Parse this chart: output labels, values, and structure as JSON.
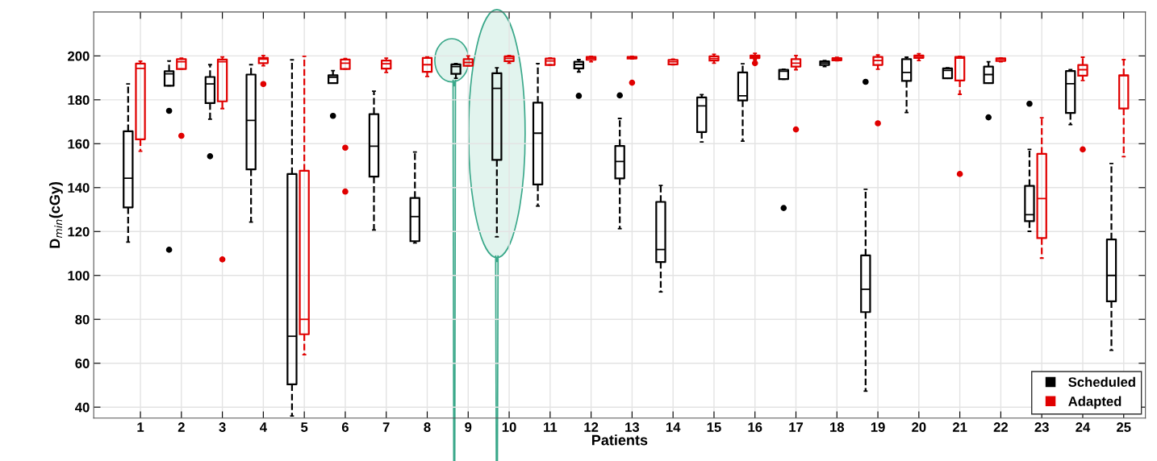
{
  "chart_data": {
    "type": "box",
    "xlabel": "Patients",
    "ylabel": "D$_{min}$(cGy)",
    "categories": [
      "1",
      "2",
      "3",
      "4",
      "5",
      "6",
      "7",
      "8",
      "9",
      "10",
      "11",
      "12",
      "13",
      "14",
      "15",
      "16",
      "17",
      "18",
      "19",
      "20",
      "21",
      "22",
      "23",
      "24",
      "25"
    ],
    "ylim": [
      35,
      220
    ],
    "yticks": [
      40,
      60,
      80,
      100,
      120,
      140,
      160,
      180,
      200
    ],
    "grid": true,
    "legend": "bottom right",
    "series": [
      {
        "name": "Scheduled",
        "color": "#000000",
        "boxes": [
          {
            "low": 115.2,
            "q1": 131,
            "median": 144.3,
            "q3": 165.7,
            "high": 187.2
          },
          {
            "low": 186.4,
            "q1": 186.4,
            "median": 191.8,
            "q3": 193,
            "high": 197.7,
            "outliers": [
              175,
              111.7
            ]
          },
          {
            "low": 171.2,
            "q1": 178.5,
            "median": 187.2,
            "q3": 190.4,
            "high": 196,
            "outliers": [
              154.3
            ]
          },
          {
            "low": 124.3,
            "q1": 148.3,
            "median": 170.6,
            "q3": 191.5,
            "high": 196
          },
          {
            "low": 36,
            "q1": 50.4,
            "median": 72.3,
            "q3": 146.2,
            "high": 198.2
          },
          {
            "low": 187.6,
            "q1": 187.6,
            "median": 190.3,
            "q3": 191.2,
            "high": 193.3,
            "outliers": [
              172.7
            ]
          },
          {
            "low": 120.7,
            "q1": 145,
            "median": 158.9,
            "q3": 173.5,
            "high": 183.9
          },
          {
            "low": 114.8,
            "q1": 115.6,
            "median": 126.8,
            "q3": 135.3,
            "high": 156.2
          },
          {
            "low": 189.8,
            "q1": 191.8,
            "median": 195.1,
            "q3": 196.1,
            "high": 196.5
          },
          {
            "low": 117.6,
            "q1": 152.6,
            "median": 185.2,
            "q3": 192.1,
            "high": 194.6
          },
          {
            "low": 131.6,
            "q1": 141.4,
            "median": 164.8,
            "q3": 178.7,
            "high": 196.5
          },
          {
            "low": 192.7,
            "q1": 194.3,
            "median": 196.1,
            "q3": 197.3,
            "high": 198.3,
            "outliers": [
              181.8
            ]
          },
          {
            "low": 121.3,
            "q1": 144.2,
            "median": 151.9,
            "q3": 159,
            "high": 171.5,
            "outliers": [
              182
            ]
          },
          {
            "low": 92.5,
            "q1": 106.1,
            "median": 111.8,
            "q3": 133.5,
            "high": 141
          },
          {
            "low": 160.8,
            "q1": 165.3,
            "median": 177.2,
            "q3": 181.1,
            "high": 182.4
          },
          {
            "low": 161.2,
            "q1": 179.7,
            "median": 181.8,
            "q3": 192.5,
            "high": 196.4
          },
          {
            "low": 189.4,
            "q1": 189.4,
            "median": 193,
            "q3": 193.7,
            "high": 193.9,
            "outliers": [
              130.7
            ]
          },
          {
            "low": 195.1,
            "q1": 195.9,
            "median": 196.8,
            "q3": 197.5,
            "high": 197.9
          },
          {
            "low": 47.3,
            "q1": 83.3,
            "median": 93.7,
            "q3": 109.1,
            "high": 139.2,
            "outliers": [
              188.2
            ]
          },
          {
            "low": 174.2,
            "q1": 188.6,
            "median": 192.5,
            "q3": 198.5,
            "high": 199.4
          },
          {
            "low": 189.8,
            "q1": 189.8,
            "median": 193.4,
            "q3": 194.3,
            "high": 194.6
          },
          {
            "low": 187.6,
            "q1": 187.6,
            "median": 191.5,
            "q3": 195.1,
            "high": 197.3,
            "outliers": [
              172
            ]
          },
          {
            "low": 120.1,
            "q1": 124.7,
            "median": 127.7,
            "q3": 140.8,
            "high": 157.4,
            "outliers": [
              178.2
            ]
          },
          {
            "low": 168.7,
            "q1": 174,
            "median": 187.3,
            "q3": 193.1,
            "high": 193.7
          },
          {
            "low": 65.9,
            "q1": 88.2,
            "median": 100,
            "q3": 116.4,
            "high": 151
          }
        ]
      },
      {
        "name": "Adapted",
        "color": "#e00000",
        "boxes": [
          {
            "low": 156.6,
            "q1": 162,
            "median": 194.3,
            "q3": 196.5,
            "high": 197.6
          },
          {
            "low": 194,
            "q1": 194,
            "median": 197.3,
            "q3": 198.5,
            "high": 199,
            "outliers": [
              163.6
            ]
          },
          {
            "low": 176,
            "q1": 179.3,
            "median": 197.3,
            "q3": 198.3,
            "high": 199.5,
            "outliers": [
              107.3
            ]
          },
          {
            "low": 195.5,
            "q1": 196.7,
            "median": 198.5,
            "q3": 199.1,
            "high": 200.2,
            "outliers": [
              187.2
            ]
          },
          {
            "low": 63.9,
            "q1": 73.2,
            "median": 80,
            "q3": 147.7,
            "high": 199.8
          },
          {
            "low": 194,
            "q1": 194,
            "median": 196.7,
            "q3": 198.3,
            "high": 198.8,
            "outliers": [
              158.2,
              138.2
            ]
          },
          {
            "low": 192.5,
            "q1": 194.2,
            "median": 196.4,
            "q3": 197.9,
            "high": 199
          },
          {
            "low": 190.6,
            "q1": 192.7,
            "median": 196,
            "q3": 199.1,
            "high": 199.5
          },
          {
            "low": 195.5,
            "q1": 195.5,
            "median": 197,
            "q3": 198.5,
            "high": 200
          },
          {
            "low": 196.7,
            "q1": 197.6,
            "median": 198.9,
            "q3": 199.8,
            "high": 200.2
          },
          {
            "low": 195.9,
            "q1": 195.9,
            "median": 197.7,
            "q3": 198.8,
            "high": 199.1
          },
          {
            "low": 197.3,
            "q1": 198.2,
            "median": 199,
            "q3": 199.5,
            "high": 199.8
          },
          {
            "low": 198.6,
            "q1": 198.8,
            "median": 199.1,
            "q3": 199.5,
            "high": 199.8,
            "outliers": [
              187.8
            ]
          },
          {
            "low": 196,
            "q1": 196.1,
            "median": 197.3,
            "q3": 198.2,
            "high": 198.5
          },
          {
            "low": 196.7,
            "q1": 197.9,
            "median": 198.8,
            "q3": 199.8,
            "high": 200.7
          },
          {
            "low": 198.3,
            "q1": 199,
            "median": 199.5,
            "q3": 200.2,
            "high": 201.2,
            "outliers": [
              196.7
            ]
          },
          {
            "low": 193.7,
            "q1": 195.1,
            "median": 196.7,
            "q3": 198.5,
            "high": 200.2,
            "outliers": [
              166.5
            ]
          },
          {
            "low": 197.8,
            "q1": 198,
            "median": 198.5,
            "q3": 199,
            "high": 199.3
          },
          {
            "low": 193.9,
            "q1": 195.9,
            "median": 197.9,
            "q3": 199.5,
            "high": 200.4,
            "outliers": [
              169.3
            ]
          },
          {
            "low": 197.9,
            "q1": 199.1,
            "median": 199.8,
            "q3": 200.2,
            "high": 201
          },
          {
            "low": 182.5,
            "q1": 188.8,
            "median": 199,
            "q3": 199.5,
            "high": 199.8,
            "outliers": [
              146.2
            ]
          },
          {
            "low": 197.3,
            "q1": 197.7,
            "median": 198.5,
            "q3": 198.9,
            "high": 199.1
          },
          {
            "low": 107.9,
            "q1": 117,
            "median": 135,
            "q3": 155.4,
            "high": 171.8
          },
          {
            "low": 188.8,
            "q1": 191,
            "median": 193.7,
            "q3": 195.9,
            "high": 199.4,
            "outliers": [
              157.4
            ]
          },
          {
            "low": 154.1,
            "q1": 176,
            "median": 191,
            "q3": 191.2,
            "high": 198.3
          }
        ]
      }
    ]
  }
}
